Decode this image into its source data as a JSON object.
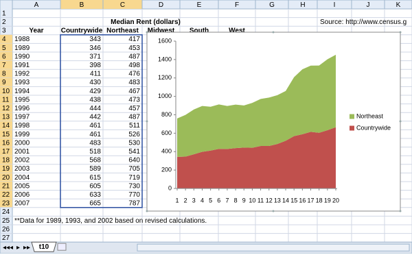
{
  "sheet": {
    "columns": [
      "A",
      "B",
      "C",
      "D",
      "E",
      "F",
      "G",
      "H",
      "I",
      "J",
      "K"
    ],
    "rows": [
      1,
      2,
      3,
      4,
      5,
      6,
      7,
      8,
      9,
      10,
      11,
      12,
      13,
      14,
      15,
      16,
      17,
      18,
      19,
      20,
      21,
      22,
      23,
      24,
      25,
      26,
      27
    ],
    "title": "Median Rent (dollars)",
    "source": "Source: http://www.census.g",
    "headers": [
      "Year",
      "Midwest",
      "South",
      "West"
    ],
    "years": [
      1988,
      1989,
      1990,
      1991,
      1992,
      1993,
      1994,
      1995,
      1996,
      1997,
      1998,
      1999,
      2000,
      2001,
      2002,
      2003,
      2004,
      2005,
      2006,
      2007
    ],
    "note": "**Data for 1989, 1993, and 2002 based on revised calculations.",
    "tab": "t10"
  },
  "chart_data": {
    "type": "stacked-area",
    "categories": [
      1,
      2,
      3,
      4,
      5,
      6,
      7,
      8,
      9,
      10,
      11,
      12,
      13,
      14,
      15,
      16,
      17,
      18,
      19,
      20
    ],
    "series": [
      {
        "name": "Countrywide",
        "color": "#c0504d",
        "values": [
          343,
          346,
          371,
          398,
          411,
          430,
          429,
          438,
          444,
          442,
          461,
          461,
          483,
          518,
          568,
          589,
          615,
          605,
          633,
          665
        ]
      },
      {
        "name": "Northeast",
        "color": "#9bbb59",
        "values": [
          417,
          453,
          487,
          498,
          476,
          483,
          467,
          473,
          457,
          487,
          511,
          526,
          530,
          541,
          640,
          705,
          719,
          730,
          770,
          787
        ]
      }
    ],
    "ylim": [
      0,
      1600
    ],
    "yticks": [
      0,
      200,
      400,
      600,
      800,
      1000,
      1200,
      1400,
      1600
    ],
    "legend": "right"
  }
}
